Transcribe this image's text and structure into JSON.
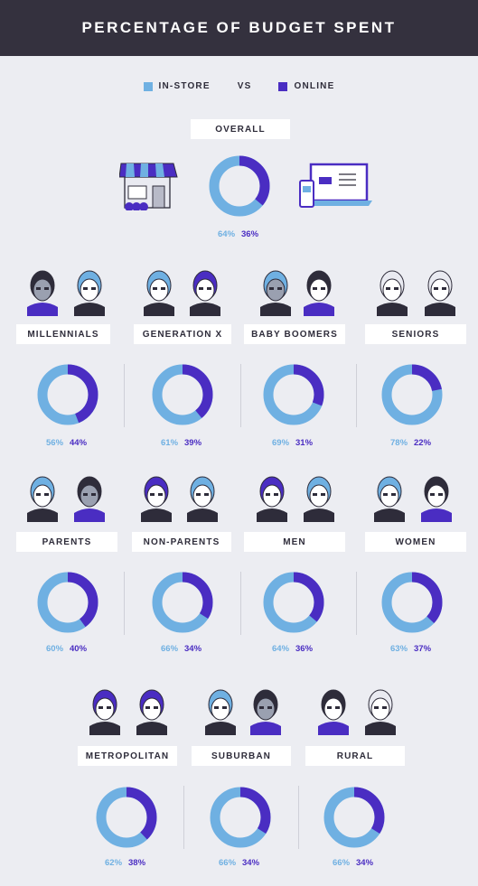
{
  "title": "PERCENTAGE OF BUDGET SPENT",
  "legend": {
    "in_store": "IN-STORE",
    "vs": "VS",
    "online": "ONLINE"
  },
  "colors": {
    "in_store": "#6fb0e2",
    "online": "#4a2dc2",
    "header_bg": "#34313e",
    "page_bg": "#ecedf2"
  },
  "chart_data": [
    {
      "type": "pie",
      "title": "OVERALL",
      "categories": [
        "IN-STORE",
        "ONLINE"
      ],
      "values": [
        64,
        36
      ],
      "labels": [
        "64%",
        "36%"
      ]
    },
    {
      "type": "pie",
      "title": "MILLENNIALS",
      "categories": [
        "IN-STORE",
        "ONLINE"
      ],
      "values": [
        56,
        44
      ],
      "labels": [
        "56%",
        "44%"
      ]
    },
    {
      "type": "pie",
      "title": "GENERATION X",
      "categories": [
        "IN-STORE",
        "ONLINE"
      ],
      "values": [
        61,
        39
      ],
      "labels": [
        "61%",
        "39%"
      ]
    },
    {
      "type": "pie",
      "title": "BABY BOOMERS",
      "categories": [
        "IN-STORE",
        "ONLINE"
      ],
      "values": [
        69,
        31
      ],
      "labels": [
        "69%",
        "31%"
      ]
    },
    {
      "type": "pie",
      "title": "SENIORS",
      "categories": [
        "IN-STORE",
        "ONLINE"
      ],
      "values": [
        78,
        22
      ],
      "labels": [
        "78%",
        "22%"
      ]
    },
    {
      "type": "pie",
      "title": "PARENTS",
      "categories": [
        "IN-STORE",
        "ONLINE"
      ],
      "values": [
        60,
        40
      ],
      "labels": [
        "60%",
        "40%"
      ]
    },
    {
      "type": "pie",
      "title": "NON-PARENTS",
      "categories": [
        "IN-STORE",
        "ONLINE"
      ],
      "values": [
        66,
        34
      ],
      "labels": [
        "66%",
        "34%"
      ]
    },
    {
      "type": "pie",
      "title": "MEN",
      "categories": [
        "IN-STORE",
        "ONLINE"
      ],
      "values": [
        64,
        36
      ],
      "labels": [
        "64%",
        "36%"
      ]
    },
    {
      "type": "pie",
      "title": "WOMEN",
      "categories": [
        "IN-STORE",
        "ONLINE"
      ],
      "values": [
        63,
        37
      ],
      "labels": [
        "63%",
        "37%"
      ]
    },
    {
      "type": "pie",
      "title": "METROPOLITAN",
      "categories": [
        "IN-STORE",
        "ONLINE"
      ],
      "values": [
        62,
        38
      ],
      "labels": [
        "62%",
        "38%"
      ]
    },
    {
      "type": "pie",
      "title": "SUBURBAN",
      "categories": [
        "IN-STORE",
        "ONLINE"
      ],
      "values": [
        66,
        34
      ],
      "labels": [
        "66%",
        "34%"
      ]
    },
    {
      "type": "pie",
      "title": "RURAL",
      "categories": [
        "IN-STORE",
        "ONLINE"
      ],
      "values": [
        66,
        34
      ],
      "labels": [
        "66%",
        "34%"
      ]
    }
  ],
  "icons": [
    "storefront-icon",
    "laptop-phone-icon",
    "person-avatar-icon"
  ]
}
